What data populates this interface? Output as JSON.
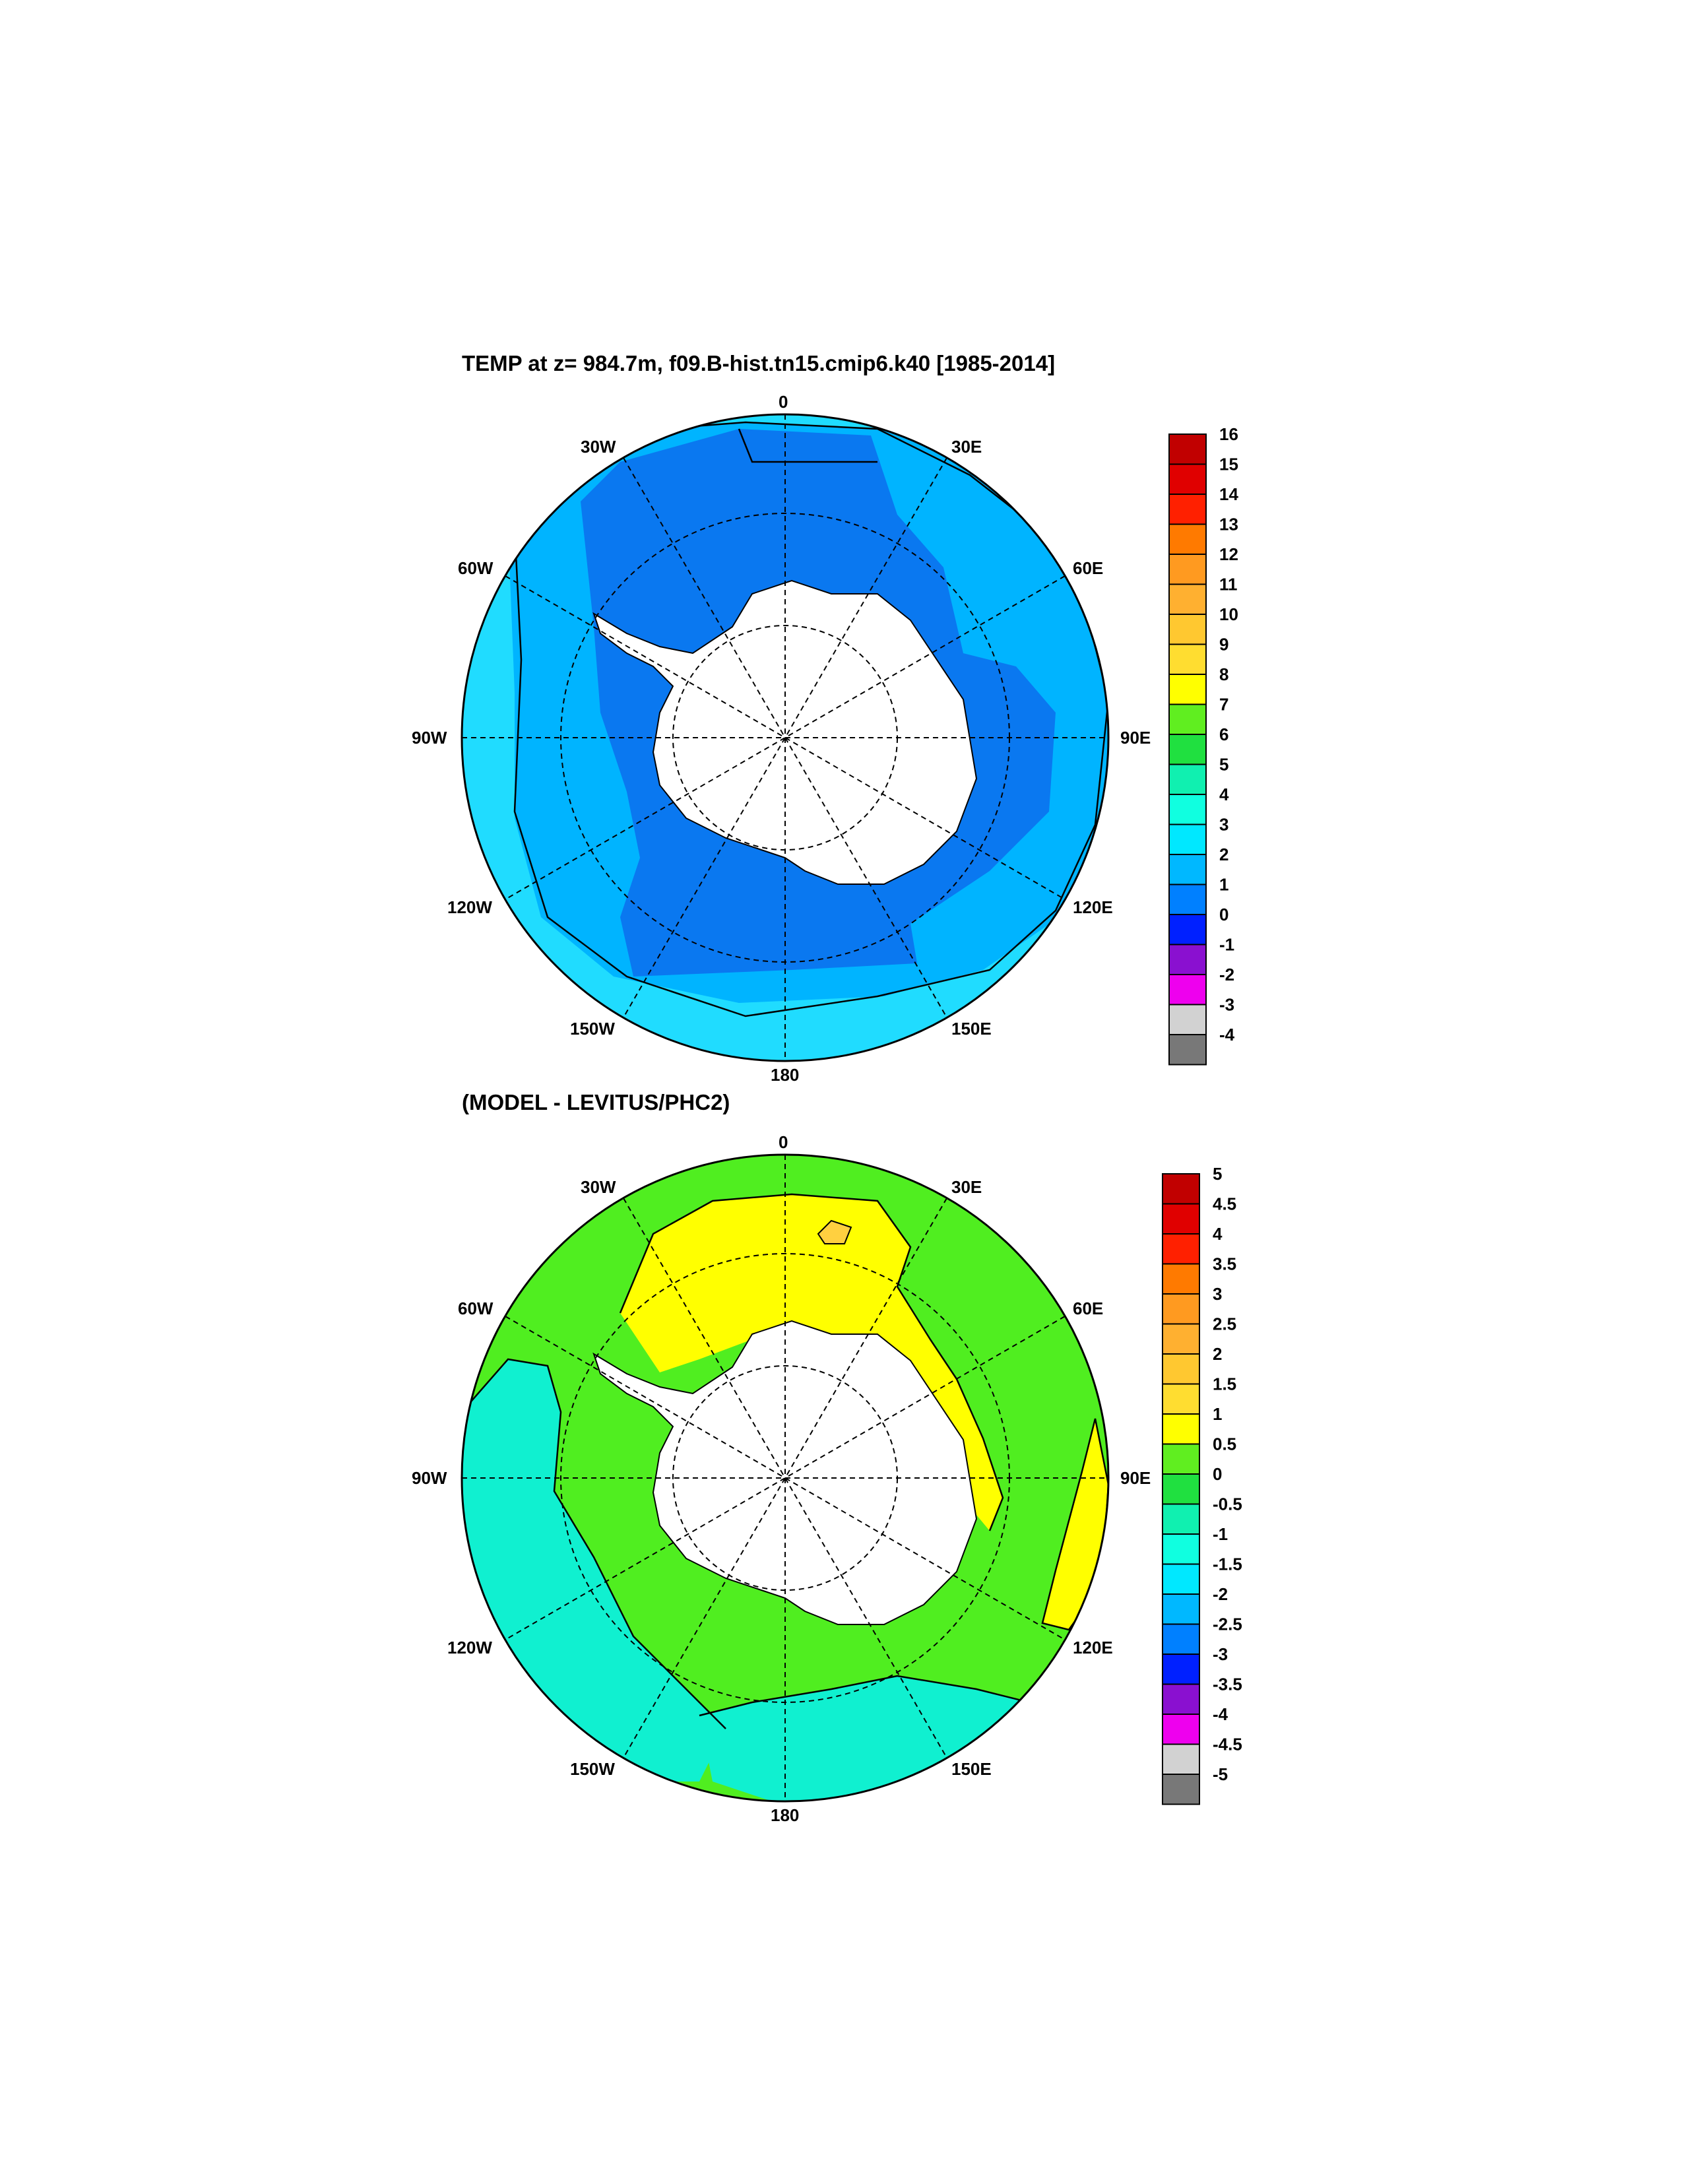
{
  "figure": {
    "title_top": "TEMP at z= 984.7m, f09.B-hist.tn15.cmip6.k40 [1985-2014]",
    "title_bottom": "(MODEL - LEVITUS/PHC2)"
  },
  "maps": [
    {
      "id": "top",
      "longitude_labels": [
        "0",
        "30E",
        "60E",
        "90E",
        "120E",
        "150E",
        "180",
        "150W",
        "120W",
        "90W",
        "60W",
        "30W"
      ],
      "colorbar": {
        "labels": [
          "16",
          "15",
          "14",
          "13",
          "12",
          "11",
          "10",
          "9",
          "8",
          "7",
          "6",
          "5",
          "4",
          "3",
          "2",
          "1",
          "0",
          "-1",
          "-2",
          "-3",
          "-4"
        ],
        "colors": [
          "#c10000",
          "#e00000",
          "#ff2000",
          "#ff7a00",
          "#ff9a20",
          "#ffb030",
          "#ffc830",
          "#ffdd30",
          "#ffff00",
          "#60ee20",
          "#20e040",
          "#10f0b0",
          "#10ffe0",
          "#00e8ff",
          "#00b8ff",
          "#0080ff",
          "#0020ff",
          "#8a10d0",
          "#ee00ee",
          "#d2d2d2",
          "#787878"
        ]
      },
      "field_colors": {
        "outer": "#20dcff",
        "middle": "#00b4ff",
        "inner": "#0a78f0",
        "land": "#ffffff"
      }
    },
    {
      "id": "bottom",
      "longitude_labels": [
        "0",
        "30E",
        "60E",
        "90E",
        "120E",
        "150E",
        "180",
        "150W",
        "120W",
        "90W",
        "60W",
        "30W"
      ],
      "colorbar": {
        "labels": [
          "5",
          "4.5",
          "4",
          "3.5",
          "3",
          "2.5",
          "2",
          "1.5",
          "1",
          "0.5",
          "0",
          "-0.5",
          "-1",
          "-1.5",
          "-2",
          "-2.5",
          "-3",
          "-3.5",
          "-4",
          "-4.5",
          "-5"
        ],
        "colors": [
          "#c10000",
          "#e00000",
          "#ff2000",
          "#ff7a00",
          "#ff9a20",
          "#ffb030",
          "#ffc830",
          "#ffdd30",
          "#ffff00",
          "#60ee20",
          "#20e040",
          "#10f0b0",
          "#10ffe0",
          "#00e8ff",
          "#00b8ff",
          "#0080ff",
          "#0020ff",
          "#8a10d0",
          "#ee00ee",
          "#d2d2d2",
          "#787878"
        ]
      },
      "field_colors": {
        "green": "#50ee20",
        "cyan": "#10f0d0",
        "yellow": "#ffff00",
        "orange": "#ffd040",
        "land": "#ffffff"
      }
    }
  ]
}
